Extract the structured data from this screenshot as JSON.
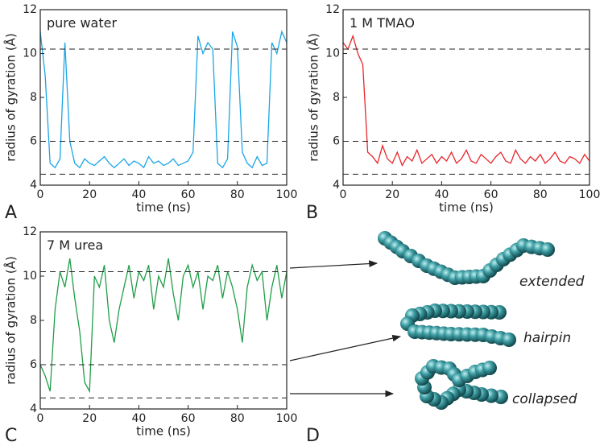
{
  "chart_data": [
    {
      "type": "line",
      "annotation": "pure water",
      "color": "#1aa6e6",
      "x_label": "time (ns)",
      "y_label": "radius of gyration (Å)",
      "x": [
        0,
        2,
        4,
        6,
        8,
        10,
        12,
        14,
        16,
        18,
        20,
        22,
        24,
        26,
        28,
        30,
        32,
        34,
        36,
        38,
        40,
        42,
        44,
        46,
        48,
        50,
        52,
        54,
        56,
        58,
        60,
        62,
        64,
        66,
        68,
        70,
        72,
        74,
        76,
        78,
        80,
        82,
        84,
        86,
        88,
        90,
        92,
        94,
        96,
        98,
        100
      ],
      "values": [
        11,
        9,
        5.0,
        4.8,
        5.2,
        10.5,
        6,
        5.0,
        4.8,
        5.2,
        5.0,
        4.9,
        5.1,
        5.3,
        5.0,
        4.8,
        5.0,
        5.2,
        4.9,
        5.1,
        5.0,
        4.8,
        5.3,
        5.0,
        5.1,
        4.9,
        5.0,
        5.2,
        4.9,
        5.0,
        5.1,
        5.5,
        10.8,
        10.0,
        10.5,
        10.2,
        5.0,
        4.8,
        5.2,
        11.0,
        10.3,
        5.5,
        5.0,
        4.8,
        5.3,
        4.9,
        5.0,
        10.5,
        10.0,
        11.0,
        10.5
      ],
      "xlim": [
        0,
        100
      ],
      "xticks": [
        0,
        20,
        40,
        60,
        80,
        100
      ],
      "ylim": [
        4,
        12
      ],
      "yticks": [
        4,
        6,
        8,
        10,
        12
      ],
      "reference_lines": [
        4.5,
        6,
        10.2
      ]
    },
    {
      "type": "line",
      "annotation": "1 M TMAO",
      "color": "#e8262a",
      "x_label": "time (ns)",
      "y_label": "radius of gyration (Å)",
      "x": [
        0,
        2,
        4,
        6,
        8,
        10,
        12,
        14,
        16,
        18,
        20,
        22,
        24,
        26,
        28,
        30,
        32,
        34,
        36,
        38,
        40,
        42,
        44,
        46,
        48,
        50,
        52,
        54,
        56,
        58,
        60,
        62,
        64,
        66,
        68,
        70,
        72,
        74,
        76,
        78,
        80,
        82,
        84,
        86,
        88,
        90,
        92,
        94,
        96,
        98,
        100
      ],
      "values": [
        10.5,
        10.2,
        10.8,
        10.0,
        9.5,
        5.5,
        5.3,
        5.0,
        5.8,
        5.2,
        5.0,
        5.5,
        4.9,
        5.3,
        5.1,
        5.6,
        5.0,
        5.2,
        5.4,
        5.0,
        5.3,
        5.1,
        5.5,
        5.0,
        5.2,
        5.6,
        5.1,
        5.0,
        5.4,
        5.2,
        5.0,
        5.3,
        5.5,
        5.1,
        5.0,
        5.6,
        5.2,
        5.0,
        5.3,
        5.1,
        5.4,
        5.0,
        5.2,
        5.5,
        5.1,
        5.0,
        5.3,
        5.2,
        5.0,
        5.4,
        5.1
      ],
      "xlim": [
        0,
        100
      ],
      "xticks": [
        0,
        20,
        40,
        60,
        80,
        100
      ],
      "ylim": [
        4,
        12
      ],
      "yticks": [
        4,
        6,
        8,
        10,
        12
      ],
      "reference_lines": [
        4.5,
        6,
        10.2
      ]
    },
    {
      "type": "line",
      "annotation": "7 M urea",
      "color": "#1f9e48",
      "x_label": "time (ns)",
      "y_label": "radius of gyration (Å)",
      "x": [
        0,
        2,
        4,
        6,
        8,
        10,
        12,
        14,
        16,
        18,
        20,
        22,
        24,
        26,
        28,
        30,
        32,
        34,
        36,
        38,
        40,
        42,
        44,
        46,
        48,
        50,
        52,
        54,
        56,
        58,
        60,
        62,
        64,
        66,
        68,
        70,
        72,
        74,
        76,
        78,
        80,
        82,
        84,
        86,
        88,
        90,
        92,
        94,
        96,
        98,
        100
      ],
      "values": [
        6,
        5.5,
        4.8,
        8.5,
        10.2,
        9.5,
        10.8,
        9.0,
        7.5,
        5.2,
        4.8,
        10.0,
        9.5,
        10.5,
        8.0,
        7.0,
        8.5,
        9.5,
        10.5,
        9.0,
        10.2,
        9.8,
        10.5,
        8.5,
        10.0,
        9.5,
        10.8,
        9.2,
        8.0,
        10.0,
        10.5,
        9.5,
        10.2,
        8.5,
        10.0,
        9.8,
        10.5,
        9.0,
        10.2,
        9.5,
        8.5,
        7.0,
        9.5,
        10.5,
        9.8,
        10.2,
        8.0,
        9.5,
        10.5,
        9.0,
        10.2
      ],
      "xlim": [
        0,
        100
      ],
      "xticks": [
        0,
        20,
        40,
        60,
        80,
        100
      ],
      "ylim": [
        4,
        12
      ],
      "yticks": [
        4,
        6,
        8,
        10,
        12
      ],
      "reference_lines": [
        4.5,
        6,
        10.2
      ]
    }
  ],
  "panel_labels": [
    "A",
    "B",
    "C",
    "D"
  ],
  "structures": [
    "extended",
    "hairpin",
    "collapsed"
  ]
}
